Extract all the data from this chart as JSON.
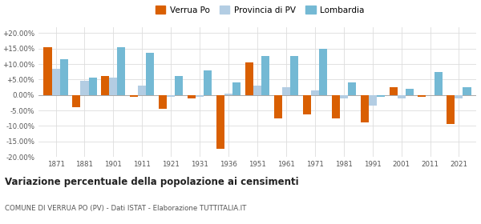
{
  "years": [
    1871,
    1881,
    1901,
    1911,
    1921,
    1931,
    1936,
    1951,
    1961,
    1971,
    1981,
    1991,
    2001,
    2011,
    2021
  ],
  "verrua_po": [
    15.5,
    -4.0,
    6.2,
    -0.5,
    -4.5,
    -1.0,
    -17.5,
    10.5,
    -7.5,
    -6.2,
    -7.5,
    -9.0,
    2.5,
    -0.5,
    -9.5
  ],
  "provincia_pv": [
    8.5,
    4.5,
    5.5,
    3.0,
    -0.5,
    -0.5,
    0.5,
    3.0,
    2.5,
    1.5,
    -1.0,
    -3.5,
    -1.0,
    0.0,
    -1.0
  ],
  "lombardia": [
    11.5,
    5.5,
    15.5,
    13.5,
    6.0,
    8.0,
    4.0,
    12.5,
    12.5,
    15.0,
    4.0,
    -0.5,
    2.0,
    7.5,
    2.5
  ],
  "color_verrua": "#d95f02",
  "color_provincia": "#b3cde3",
  "color_lombardia": "#74b9d4",
  "title": "Variazione percentuale della popolazione ai censimenti",
  "subtitle": "COMUNE DI VERRUA PO (PV) - Dati ISTAT - Elaborazione TUTTITALIA.IT",
  "legend_labels": [
    "Verrua Po",
    "Provincia di PV",
    "Lombardia"
  ],
  "ylim": [
    -20,
    22
  ],
  "yticks": [
    -20,
    -15,
    -10,
    -5,
    0,
    5,
    10,
    15,
    20
  ],
  "ytick_labels": [
    "-20.00%",
    "-15.00%",
    "-10.00%",
    "-5.00%",
    "0.00%",
    "+5.00%",
    "+10.00%",
    "+15.00%",
    "+20.00%"
  ],
  "background_color": "#ffffff",
  "grid_color": "#dddddd",
  "bar_width": 0.28
}
